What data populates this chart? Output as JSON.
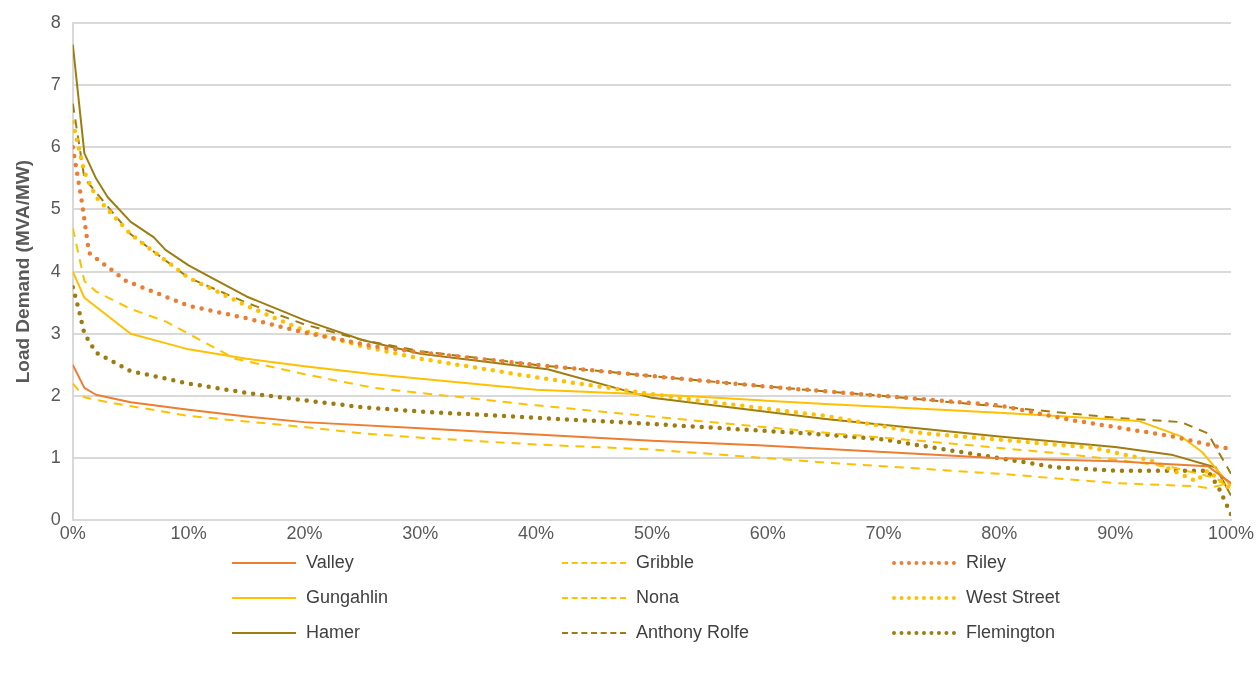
{
  "chart_data": {
    "type": "line",
    "ylabel": "Load Demand (MVA/MW)",
    "xlim": [
      0,
      100
    ],
    "xticks": [
      {
        "value": 0,
        "label": "0%"
      },
      {
        "value": 10,
        "label": "10%"
      },
      {
        "value": 20,
        "label": "20%"
      },
      {
        "value": 30,
        "label": "30%"
      },
      {
        "value": 40,
        "label": "40%"
      },
      {
        "value": 50,
        "label": "50%"
      },
      {
        "value": 60,
        "label": "60%"
      },
      {
        "value": 70,
        "label": "70%"
      },
      {
        "value": 80,
        "label": "80%"
      },
      {
        "value": 90,
        "label": "90%"
      },
      {
        "value": 100,
        "label": "100%"
      }
    ],
    "ylim": [
      0,
      8
    ],
    "yticks": [
      0,
      1,
      2,
      3,
      4,
      5,
      6,
      7,
      8
    ],
    "grid": "y",
    "legend": "bottom",
    "marker": "none",
    "series": [
      {
        "name": "Valley",
        "color": "#ed7d31",
        "line_style": "solid",
        "x": [
          0,
          1,
          2,
          5,
          10,
          15,
          20,
          30,
          40,
          50,
          60,
          70,
          80,
          90,
          98,
          100
        ],
        "values": [
          2.5,
          2.13,
          2.02,
          1.9,
          1.78,
          1.67,
          1.58,
          1.48,
          1.38,
          1.28,
          1.2,
          1.1,
          1.0,
          0.95,
          0.87,
          0.6
        ]
      },
      {
        "name": "Gribble",
        "color": "#ffc000",
        "line_style": "dashed",
        "x": [
          0,
          1,
          3,
          10,
          20,
          25,
          30,
          40,
          50,
          60,
          65,
          70,
          80,
          90,
          97,
          98,
          100
        ],
        "values": [
          2.2,
          1.98,
          1.9,
          1.68,
          1.5,
          1.4,
          1.33,
          1.22,
          1.14,
          1.0,
          0.93,
          0.87,
          0.75,
          0.6,
          0.55,
          0.52,
          0.6
        ]
      },
      {
        "name": "Riley",
        "color": "#ed7d31",
        "line_style": "dotted",
        "x": [
          0,
          0.8,
          1.4,
          4.6,
          10,
          15,
          20,
          26,
          30,
          40,
          50,
          60,
          70,
          80,
          86,
          90,
          95,
          99,
          100
        ],
        "values": [
          6.0,
          5.1,
          4.3,
          3.85,
          3.45,
          3.25,
          3.02,
          2.8,
          2.7,
          2.5,
          2.32,
          2.15,
          2.0,
          1.85,
          1.62,
          1.5,
          1.35,
          1.18,
          1.15
        ]
      },
      {
        "name": "Gungahlin",
        "color": "#ffc000",
        "line_style": "solid",
        "x": [
          0,
          1,
          5,
          8,
          10,
          15,
          20,
          26,
          40,
          53,
          65,
          75,
          85,
          92,
          95.7,
          97.5,
          100
        ],
        "values": [
          4.0,
          3.58,
          3.0,
          2.85,
          2.75,
          2.6,
          2.48,
          2.35,
          2.1,
          2.0,
          1.87,
          1.78,
          1.68,
          1.6,
          1.35,
          1.1,
          0.55
        ]
      },
      {
        "name": "Nona",
        "color": "#ffc000",
        "line_style": "dashed",
        "x": [
          0,
          1,
          2,
          5,
          8,
          14,
          20,
          26,
          40,
          54,
          65,
          75,
          85,
          90,
          95,
          98.7,
          100
        ],
        "values": [
          4.7,
          3.85,
          3.68,
          3.4,
          3.2,
          2.6,
          2.35,
          2.13,
          1.85,
          1.6,
          1.41,
          1.25,
          1.08,
          0.98,
          0.85,
          0.68,
          0.5
        ]
      },
      {
        "name": "West Street",
        "color": "#ffc000",
        "line_style": "dotted",
        "x": [
          0,
          1,
          2,
          5,
          10,
          15,
          20,
          25,
          30,
          40,
          53,
          65,
          73,
          88,
          93,
          97,
          98,
          100
        ],
        "values": [
          6.4,
          5.6,
          5.2,
          4.6,
          3.9,
          3.45,
          3.05,
          2.8,
          2.6,
          2.3,
          1.95,
          1.68,
          1.41,
          1.17,
          0.97,
          0.63,
          0.8,
          0.5
        ]
      },
      {
        "name": "Hamer",
        "color": "#9e7c0f",
        "line_style": "solid",
        "x": [
          0,
          1,
          2,
          3,
          5,
          7,
          8,
          10,
          12,
          15,
          20,
          25,
          30,
          41,
          50,
          65,
          80,
          90,
          95,
          98.7,
          100
        ],
        "values": [
          7.65,
          5.9,
          5.5,
          5.2,
          4.8,
          4.55,
          4.35,
          4.1,
          3.9,
          3.6,
          3.22,
          2.9,
          2.68,
          2.43,
          1.97,
          1.63,
          1.35,
          1.18,
          1.05,
          0.85,
          0.4
        ]
      },
      {
        "name": "Anthony Rolfe",
        "color": "#9e7c0f",
        "line_style": "dashed",
        "x": [
          0,
          1,
          5,
          10,
          15,
          20,
          25,
          30,
          40,
          50,
          60,
          70,
          80,
          90,
          95.7,
          98,
          100
        ],
        "values": [
          6.7,
          5.5,
          4.6,
          3.9,
          3.5,
          3.15,
          2.9,
          2.72,
          2.5,
          2.32,
          2.15,
          2.0,
          1.83,
          1.65,
          1.58,
          1.4,
          0.75
        ]
      },
      {
        "name": "Flemington",
        "color": "#9e7c0f",
        "line_style": "dotted",
        "x": [
          0,
          0.5,
          1,
          2,
          5,
          10,
          15,
          20,
          25,
          30,
          40,
          50,
          65,
          70,
          75,
          80,
          85,
          90,
          95,
          98,
          99,
          100
        ],
        "values": [
          3.75,
          3.4,
          3.0,
          2.7,
          2.4,
          2.2,
          2.05,
          1.93,
          1.82,
          1.75,
          1.65,
          1.55,
          1.38,
          1.3,
          1.15,
          1.0,
          0.85,
          0.8,
          0.8,
          0.8,
          0.5,
          0.1
        ]
      }
    ]
  }
}
